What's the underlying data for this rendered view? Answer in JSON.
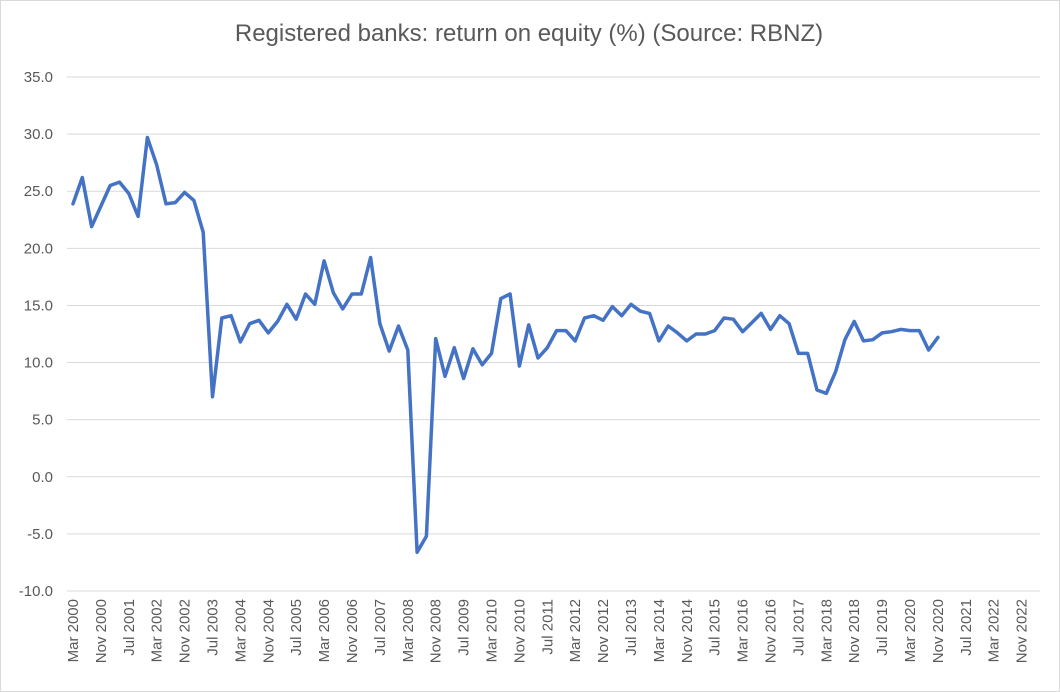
{
  "chart_data": {
    "type": "line",
    "title": "Registered banks: return on equity (%)  (Source: RBNZ)",
    "xlabel": "",
    "ylabel": "",
    "ylim": [
      -10,
      35
    ],
    "y_ticks": [
      "35.0",
      "30.0",
      "25.0",
      "20.0",
      "15.0",
      "10.0",
      "5.0",
      "0.0",
      "-5.0",
      "-10.0"
    ],
    "x_tick_labels": [
      "Mar 2000",
      "Nov 2000",
      "Jul 2001",
      "Mar 2002",
      "Nov 2002",
      "Jul 2003",
      "Mar 2004",
      "Nov 2004",
      "Jul 2005",
      "Mar 2006",
      "Nov 2006",
      "Jul 2007",
      "Mar 2008",
      "Nov 2008",
      "Jul 2009",
      "Mar 2010",
      "Nov 2010",
      "Jul 2011",
      "Mar 2012",
      "Nov 2012",
      "Jul 2013",
      "Mar 2014",
      "Nov 2014",
      "Jul 2015",
      "Mar 2016",
      "Nov 2016",
      "Jul 2017",
      "Mar 2018",
      "Nov 2018",
      "Jul 2019",
      "Mar 2020",
      "Nov 2020",
      "Jul 2021",
      "Mar 2022",
      "Nov 2022"
    ],
    "grid": true,
    "line_color": "#4472c4",
    "series": [
      {
        "values": [
          23.9,
          26.2,
          21.9,
          23.7,
          25.5,
          25.8,
          24.8,
          22.8,
          29.7,
          27.3,
          23.9,
          24.0,
          24.9,
          24.2,
          21.4,
          7.0,
          13.9,
          14.1,
          11.8,
          13.4,
          13.7,
          12.6,
          13.6,
          15.1,
          13.8,
          16.0,
          15.1,
          18.9,
          16.1,
          14.7,
          16.0,
          16.0,
          19.2,
          13.4,
          11.0,
          13.2,
          11.1,
          -6.6,
          -5.2,
          12.1,
          8.8,
          11.3,
          8.6,
          11.2,
          9.8,
          10.8,
          15.6,
          16.0,
          9.7,
          13.3,
          10.4,
          11.3,
          12.8,
          12.8,
          11.9,
          13.9,
          14.1,
          13.7,
          14.9,
          14.1,
          15.1,
          14.5,
          14.3,
          11.9,
          13.2,
          12.6,
          11.9,
          12.5,
          12.5,
          12.8,
          13.9,
          13.8,
          12.7,
          13.5,
          14.3,
          12.9,
          14.1,
          13.4,
          10.8,
          10.8,
          7.6,
          7.3,
          9.2,
          12.0,
          13.6,
          11.9,
          12.0,
          12.6,
          12.7,
          12.9,
          12.8,
          12.8,
          11.1,
          12.2
        ]
      }
    ]
  }
}
